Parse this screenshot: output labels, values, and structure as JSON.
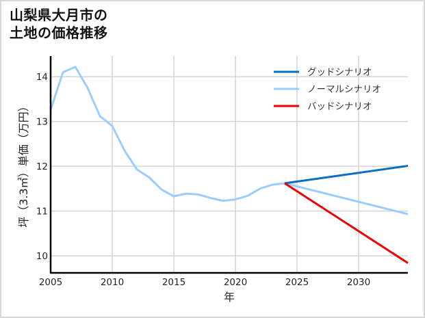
{
  "title": "山梨県大月市の\n土地の価格推移",
  "colors": {
    "good": "#0a6fc4",
    "normal": "#99ccff",
    "bad": "#ee0000",
    "grid": "#d3d3d3",
    "axis": "#000000",
    "frame": "#d6d6d6"
  },
  "chart_data": {
    "type": "line",
    "title": "山梨県大月市の土地の価格推移",
    "xlabel": "年",
    "ylabel": "坪（3.3㎡）単価（万円）",
    "xlim": [
      2005,
      2034
    ],
    "ylim": [
      9.62,
      14.46
    ],
    "xticks": [
      2005,
      2010,
      2015,
      2020,
      2025,
      2030
    ],
    "yticks": [
      10,
      11,
      12,
      13,
      14
    ],
    "grid": true,
    "legend_position": "upper right",
    "series": [
      {
        "name": "グッドシナリオ",
        "color": "#0a6fc4",
        "x": [
          2024,
          2034
        ],
        "y": [
          11.62,
          12.01
        ]
      },
      {
        "name": "ノーマルシナリオ",
        "color": "#99ccff",
        "x": [
          2005,
          2006,
          2007,
          2008,
          2009,
          2010,
          2011,
          2012,
          2013,
          2014,
          2015,
          2016,
          2017,
          2018,
          2019,
          2020,
          2021,
          2022,
          2023,
          2024,
          2034
        ],
        "y": [
          13.26,
          14.1,
          14.22,
          13.75,
          13.12,
          12.9,
          12.35,
          11.93,
          11.75,
          11.48,
          11.33,
          11.39,
          11.37,
          11.29,
          11.23,
          11.26,
          11.34,
          11.5,
          11.59,
          11.62,
          10.93
        ]
      },
      {
        "name": "バッドシナリオ",
        "color": "#ee0000",
        "x": [
          2024,
          2034
        ],
        "y": [
          11.62,
          9.84
        ]
      }
    ]
  },
  "legend": [
    {
      "label": "グッドシナリオ",
      "color": "#0a6fc4"
    },
    {
      "label": "ノーマルシナリオ",
      "color": "#99ccff"
    },
    {
      "label": "バッドシナリオ",
      "color": "#ee0000"
    }
  ],
  "axes": {
    "xlabel": "年",
    "ylabel": "坪（3.3㎡）単価（万円）",
    "xtick_labels": [
      "2005",
      "2010",
      "2015",
      "2020",
      "2025",
      "2030"
    ],
    "ytick_labels": [
      "10",
      "11",
      "12",
      "13",
      "14"
    ]
  }
}
